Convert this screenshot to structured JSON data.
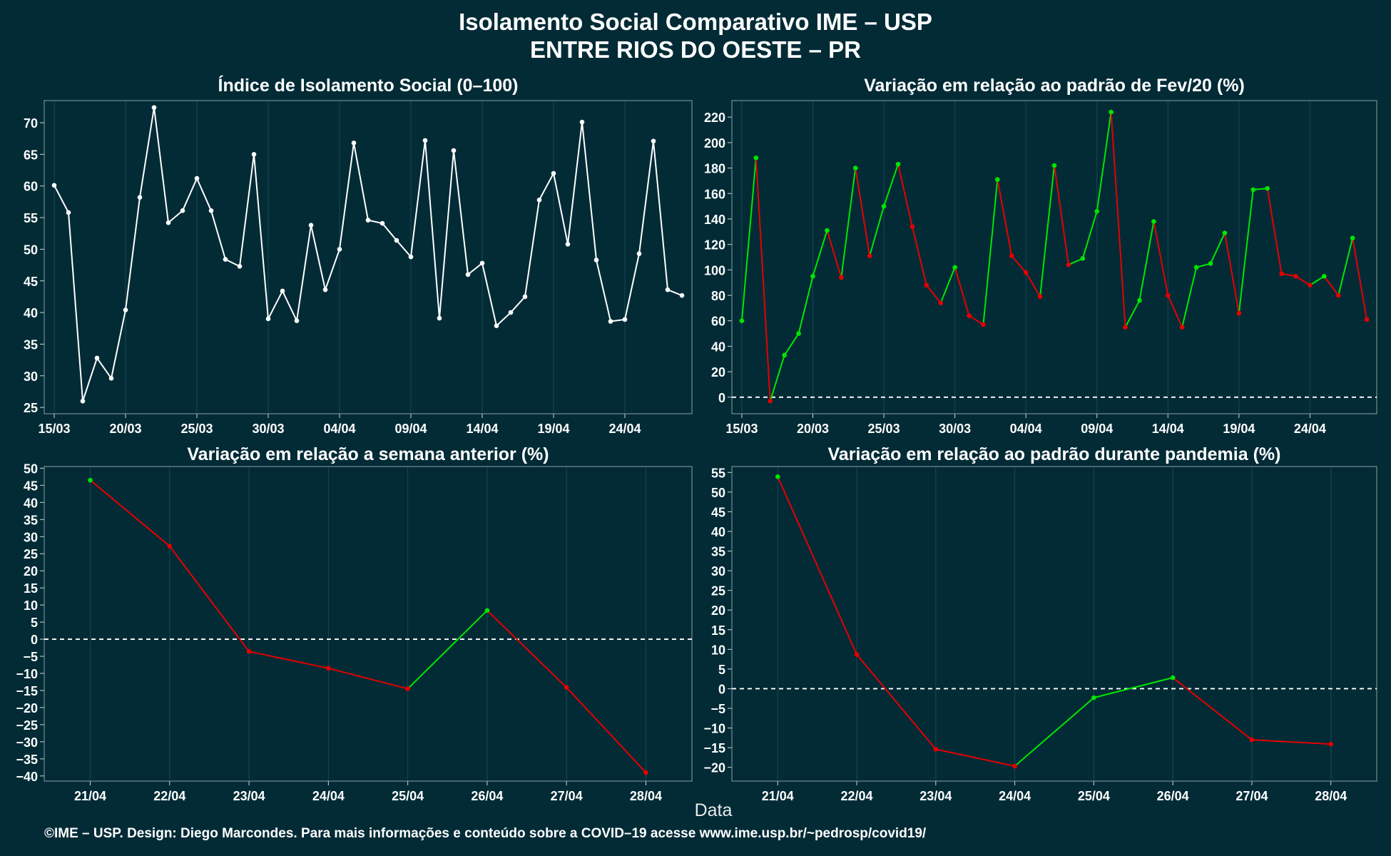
{
  "title": "Isolamento Social Comparativo IME – USP",
  "subtitle": "ENTRE RIOS DO OESTE – PR",
  "xaxis_title": "Data",
  "footer": "©IME – USP. Design: Diego Marcondes. Para mais informações e conteúdo sobre a COVID–19 acesse www.ime.usp.br/~pedrosp/covid19/",
  "colors": {
    "background": "#022b36",
    "white_line": "#ffffff",
    "positive": "#00e600",
    "negative": "#e60000",
    "grid": "#1b4652",
    "frame": "#8aa0a6"
  },
  "chart_data": [
    {
      "type": "line",
      "title": "Índice de Isolamento Social (0–100)",
      "x_tick_labels": [
        "15/03",
        "20/03",
        "25/03",
        "30/03",
        "04/04",
        "09/04",
        "14/04",
        "19/04",
        "24/04"
      ],
      "x_tick_positions": [
        0,
        5,
        10,
        15,
        20,
        25,
        30,
        35,
        40
      ],
      "y_ticks": [
        25,
        30,
        35,
        40,
        45,
        50,
        55,
        60,
        65,
        70
      ],
      "ylim": [
        24,
        73.5
      ],
      "xlim": [
        -0.7,
        44.7
      ],
      "color": "#ffffff",
      "zero_line": false,
      "y_values": [
        60.1,
        55.8,
        26.0,
        32.8,
        29.6,
        40.4,
        58.2,
        72.4,
        54.2,
        56.1,
        61.2,
        56.1,
        48.4,
        47.3,
        65.0,
        39.0,
        43.4,
        38.7,
        53.8,
        43.6,
        50.0,
        66.8,
        54.6,
        54.1,
        51.4,
        48.8,
        67.2,
        39.1,
        65.6,
        46.0,
        47.8,
        37.9,
        40.0,
        42.5,
        57.8,
        62.0,
        50.8,
        70.1,
        48.3,
        38.6,
        38.9,
        49.3,
        67.1,
        43.6,
        42.7
      ]
    },
    {
      "type": "line",
      "title": "Variação em relação ao padrão de Fev/20 (%)",
      "x_tick_labels": [
        "15/03",
        "20/03",
        "25/03",
        "30/03",
        "04/04",
        "09/04",
        "14/04",
        "19/04",
        "24/04"
      ],
      "x_tick_positions": [
        0,
        5,
        10,
        15,
        20,
        25,
        30,
        35,
        40
      ],
      "y_ticks": [
        0,
        20,
        40,
        60,
        80,
        100,
        120,
        140,
        160,
        180,
        200,
        220
      ],
      "ylim": [
        -13,
        233
      ],
      "xlim": [
        -0.7,
        44.7
      ],
      "zero_line": true,
      "y_values": [
        60,
        188,
        -3,
        33,
        50,
        95,
        131,
        94,
        180,
        111,
        150,
        183,
        134,
        88,
        74,
        102,
        64,
        57,
        171,
        111,
        98,
        79,
        182,
        104,
        109,
        146,
        224,
        55,
        76,
        138,
        80,
        55,
        102,
        105,
        129,
        66,
        163,
        164,
        97,
        95,
        88,
        95,
        80,
        125,
        61
      ]
    },
    {
      "type": "line",
      "title": "Variação em relação a semana anterior (%)",
      "x_tick_labels": [
        "21/04",
        "22/04",
        "23/04",
        "24/04",
        "25/04",
        "26/04",
        "27/04",
        "28/04"
      ],
      "x_tick_positions": [
        0,
        1,
        2,
        3,
        4,
        5,
        6,
        7
      ],
      "y_ticks": [
        -40,
        -35,
        -30,
        -25,
        -20,
        -15,
        -10,
        -5,
        0,
        5,
        10,
        15,
        20,
        25,
        30,
        35,
        40,
        45,
        50
      ],
      "ylim": [
        -41.5,
        50.5
      ],
      "xlim": [
        -0.58,
        7.58
      ],
      "zero_line": true,
      "y_values": [
        46.5,
        27.2,
        -3.6,
        -8.5,
        -14.5,
        8.4,
        -14.1,
        -39.0
      ]
    },
    {
      "type": "line",
      "title": "Variação em relação ao padrão durante pandemia (%)",
      "x_tick_labels": [
        "21/04",
        "22/04",
        "23/04",
        "24/04",
        "25/04",
        "26/04",
        "27/04",
        "28/04"
      ],
      "x_tick_positions": [
        0,
        1,
        2,
        3,
        4,
        5,
        6,
        7
      ],
      "y_ticks": [
        -20,
        -15,
        -10,
        -5,
        0,
        5,
        10,
        15,
        20,
        25,
        30,
        35,
        40,
        45,
        50,
        55
      ],
      "ylim": [
        -23.5,
        56.5
      ],
      "xlim": [
        -0.58,
        7.58
      ],
      "zero_line": true,
      "y_values": [
        53.9,
        8.7,
        -15.4,
        -19.7,
        -2.3,
        2.8,
        -13.0,
        -14.1
      ]
    }
  ]
}
